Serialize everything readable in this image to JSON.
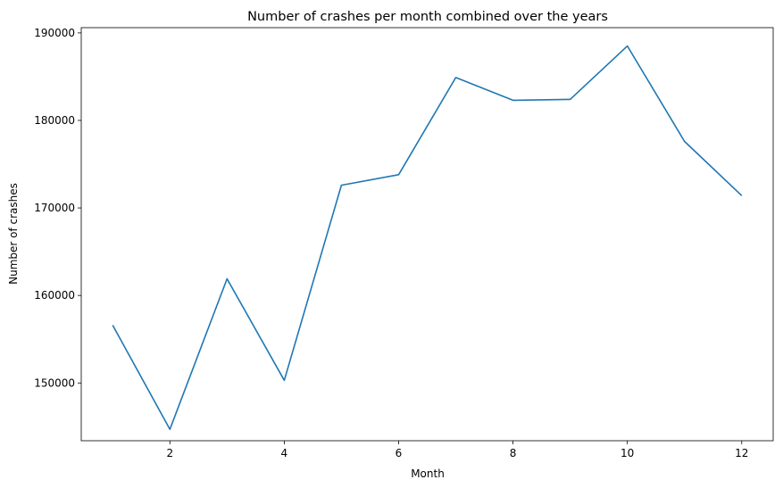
{
  "chart_data": {
    "type": "line",
    "title": "Number of crashes per month combined over the years",
    "xlabel": "Month",
    "ylabel": "Number of crashes",
    "xlim": [
      0.45,
      12.55
    ],
    "ylim": [
      143400,
      190600
    ],
    "xticks": [
      2,
      4,
      6,
      8,
      10,
      12
    ],
    "yticks": [
      150000,
      160000,
      170000,
      180000,
      190000
    ],
    "grid": false,
    "series": [
      {
        "color": "#1f77b4",
        "x": [
          1,
          2,
          3,
          4,
          5,
          6,
          7,
          8,
          9,
          10,
          11,
          12
        ],
        "y": [
          156600,
          144700,
          161900,
          150300,
          172600,
          173800,
          184900,
          182300,
          182400,
          188500,
          177600,
          171400
        ]
      }
    ]
  }
}
